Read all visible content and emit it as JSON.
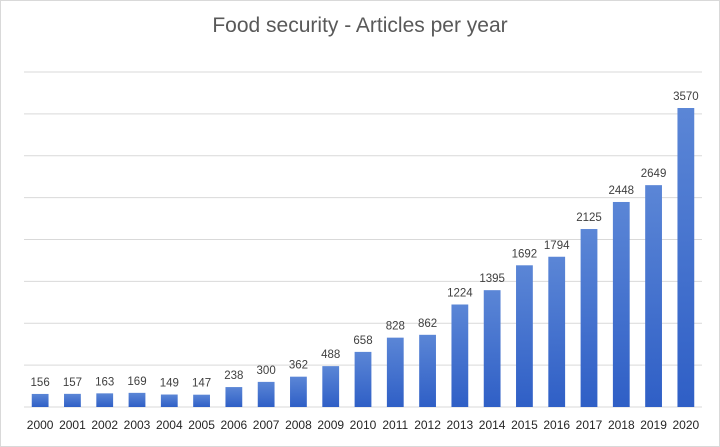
{
  "chart_data": {
    "type": "bar",
    "title": "Food security - Articles per year",
    "xlabel": "",
    "ylabel": "",
    "categories": [
      "2000",
      "2001",
      "2002",
      "2003",
      "2004",
      "2005",
      "2006",
      "2007",
      "2008",
      "2009",
      "2010",
      "2011",
      "2012",
      "2013",
      "2014",
      "2015",
      "2016",
      "2017",
      "2018",
      "2019",
      "2020"
    ],
    "series": [
      {
        "values": [
          156,
          157,
          163,
          169,
          149,
          147,
          238,
          300,
          362,
          488,
          658,
          828,
          862,
          1224,
          1395,
          1692,
          1794,
          2125,
          2448,
          2649,
          3570
        ]
      }
    ],
    "ylim": [
      0,
      4000
    ],
    "y_axis_labels_shown": false,
    "grid": true,
    "legend": "none",
    "colors": {
      "bar_top": "#5b86d6",
      "bar_bottom": "#2f5fc6",
      "grid": "#d9d9d9"
    }
  }
}
